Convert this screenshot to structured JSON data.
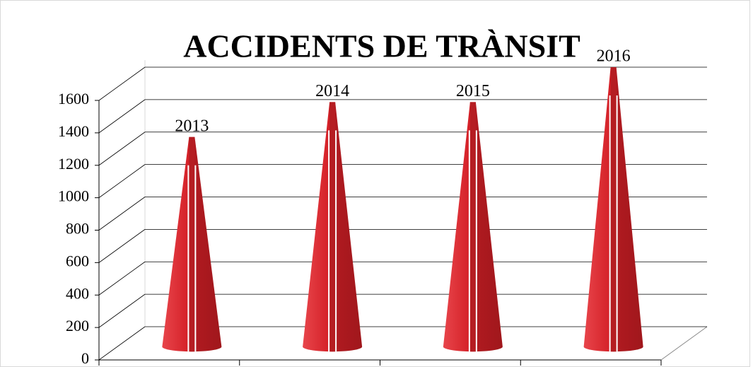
{
  "chart_data": {
    "type": "cone",
    "title": "ACCIDENTS DE TRÀNSIT",
    "categories": [
      "2013",
      "2014",
      "2015",
      "2016"
    ],
    "values": [
      1200,
      1400,
      1400,
      1600
    ],
    "color": "#d42027",
    "ylim": [
      0,
      1600
    ],
    "yticks": [
      0,
      200,
      400,
      600,
      800,
      1000,
      1200,
      1400,
      1600
    ],
    "grid": true
  }
}
